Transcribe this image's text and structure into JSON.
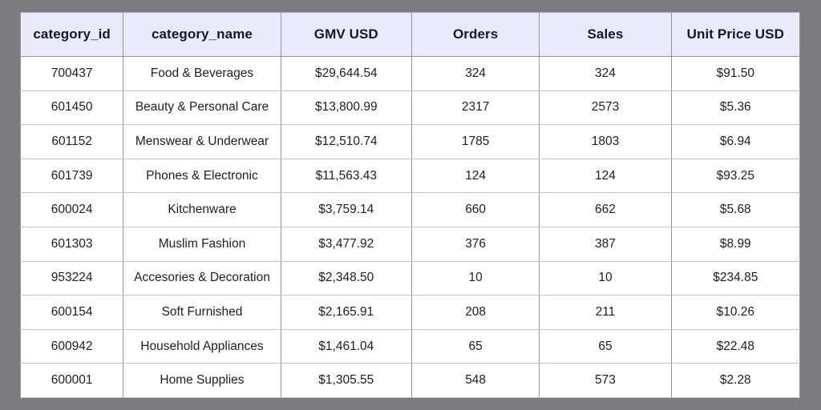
{
  "chart_data": {
    "type": "table",
    "columns": [
      "category_id",
      "category_name",
      "GMV USD",
      "Orders",
      "Sales",
      "Unit Price USD"
    ],
    "column_keys": [
      "category-id",
      "category-name",
      "gmv-usd",
      "orders",
      "sales",
      "unit-price-usd"
    ],
    "rows": [
      [
        "700437",
        "Food & Beverages",
        "$29,644.54",
        "324",
        "324",
        "$91.50"
      ],
      [
        "601450",
        "Beauty & Personal Care",
        "$13,800.99",
        "2317",
        "2573",
        "$5.36"
      ],
      [
        "601152",
        "Menswear & Underwear",
        "$12,510.74",
        "1785",
        "1803",
        "$6.94"
      ],
      [
        "601739",
        "Phones & Electronic",
        "$11,563.43",
        "124",
        "124",
        "$93.25"
      ],
      [
        "600024",
        "Kitchenware",
        "$3,759.14",
        "660",
        "662",
        "$5.68"
      ],
      [
        "601303",
        "Muslim Fashion",
        "$3,477.92",
        "376",
        "387",
        "$8.99"
      ],
      [
        "953224",
        "Accesories & Decoration",
        "$2,348.50",
        "10",
        "10",
        "$234.85"
      ],
      [
        "600154",
        "Soft Furnished",
        "$2,165.91",
        "208",
        "211",
        "$10.26"
      ],
      [
        "600942",
        "Household Appliances",
        "$1,461.04",
        "65",
        "65",
        "$22.48"
      ],
      [
        "600001",
        "Home Supplies",
        "$1,305.55",
        "548",
        "573",
        "$2.28"
      ]
    ]
  },
  "colors": {
    "page_background": "#7b7b80",
    "header_background": "#e9eafb",
    "row_background": "#ffffff",
    "column_grid_line": "#94949c",
    "row_divider": "#c2c2c9",
    "header_text": "#16162c",
    "cell_text": "#1d1d26"
  }
}
